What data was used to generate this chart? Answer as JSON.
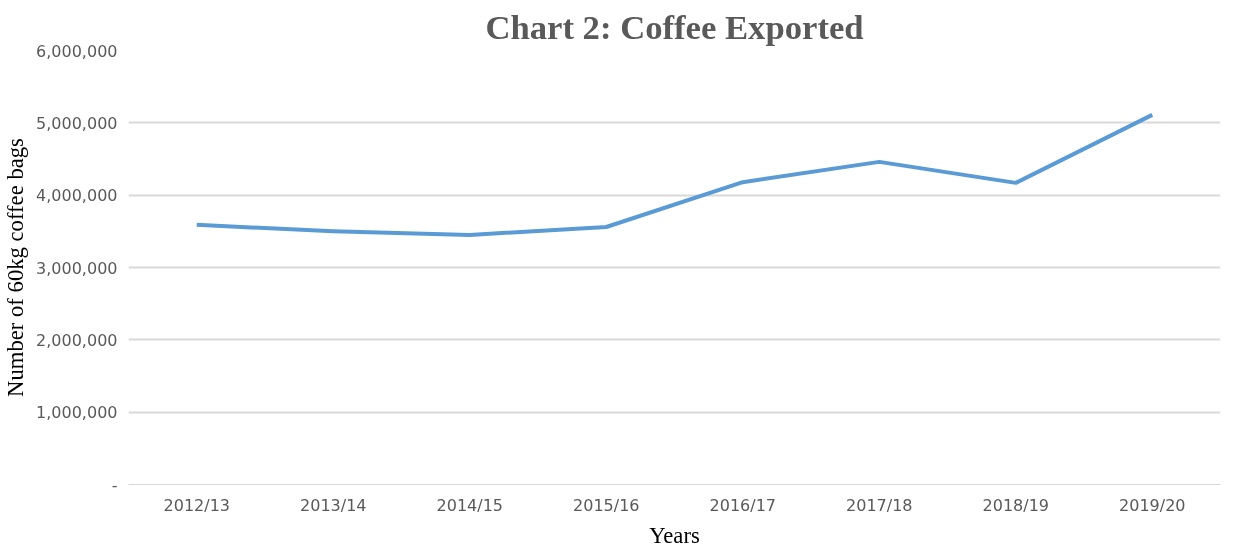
{
  "chart_data": {
    "type": "line",
    "title": "Chart 2: Coffee Exported",
    "xlabel": "Years",
    "ylabel": "Number of 60kg coffee bags",
    "categories": [
      "2012/13",
      "2013/14",
      "2014/15",
      "2015/16",
      "2016/17",
      "2017/18",
      "2018/19",
      "2019/20"
    ],
    "series": [
      {
        "color": "#5b9bd5",
        "values": [
          3590000,
          3500000,
          3450000,
          3560000,
          4180000,
          4460000,
          4170000,
          5110000
        ]
      }
    ],
    "ylim": [
      0,
      6000000
    ],
    "yticks": [
      {
        "value": 0,
        "label": "-"
      },
      {
        "value": 1000000,
        "label": "1,000,000"
      },
      {
        "value": 2000000,
        "label": "2,000,000"
      },
      {
        "value": 3000000,
        "label": "3,000,000"
      },
      {
        "value": 4000000,
        "label": "4,000,000"
      },
      {
        "value": 5000000,
        "label": "5,000,000"
      },
      {
        "value": 6000000,
        "label": "6,000,000"
      }
    ],
    "grid": "y",
    "marker": "none",
    "line_style": "solid"
  }
}
